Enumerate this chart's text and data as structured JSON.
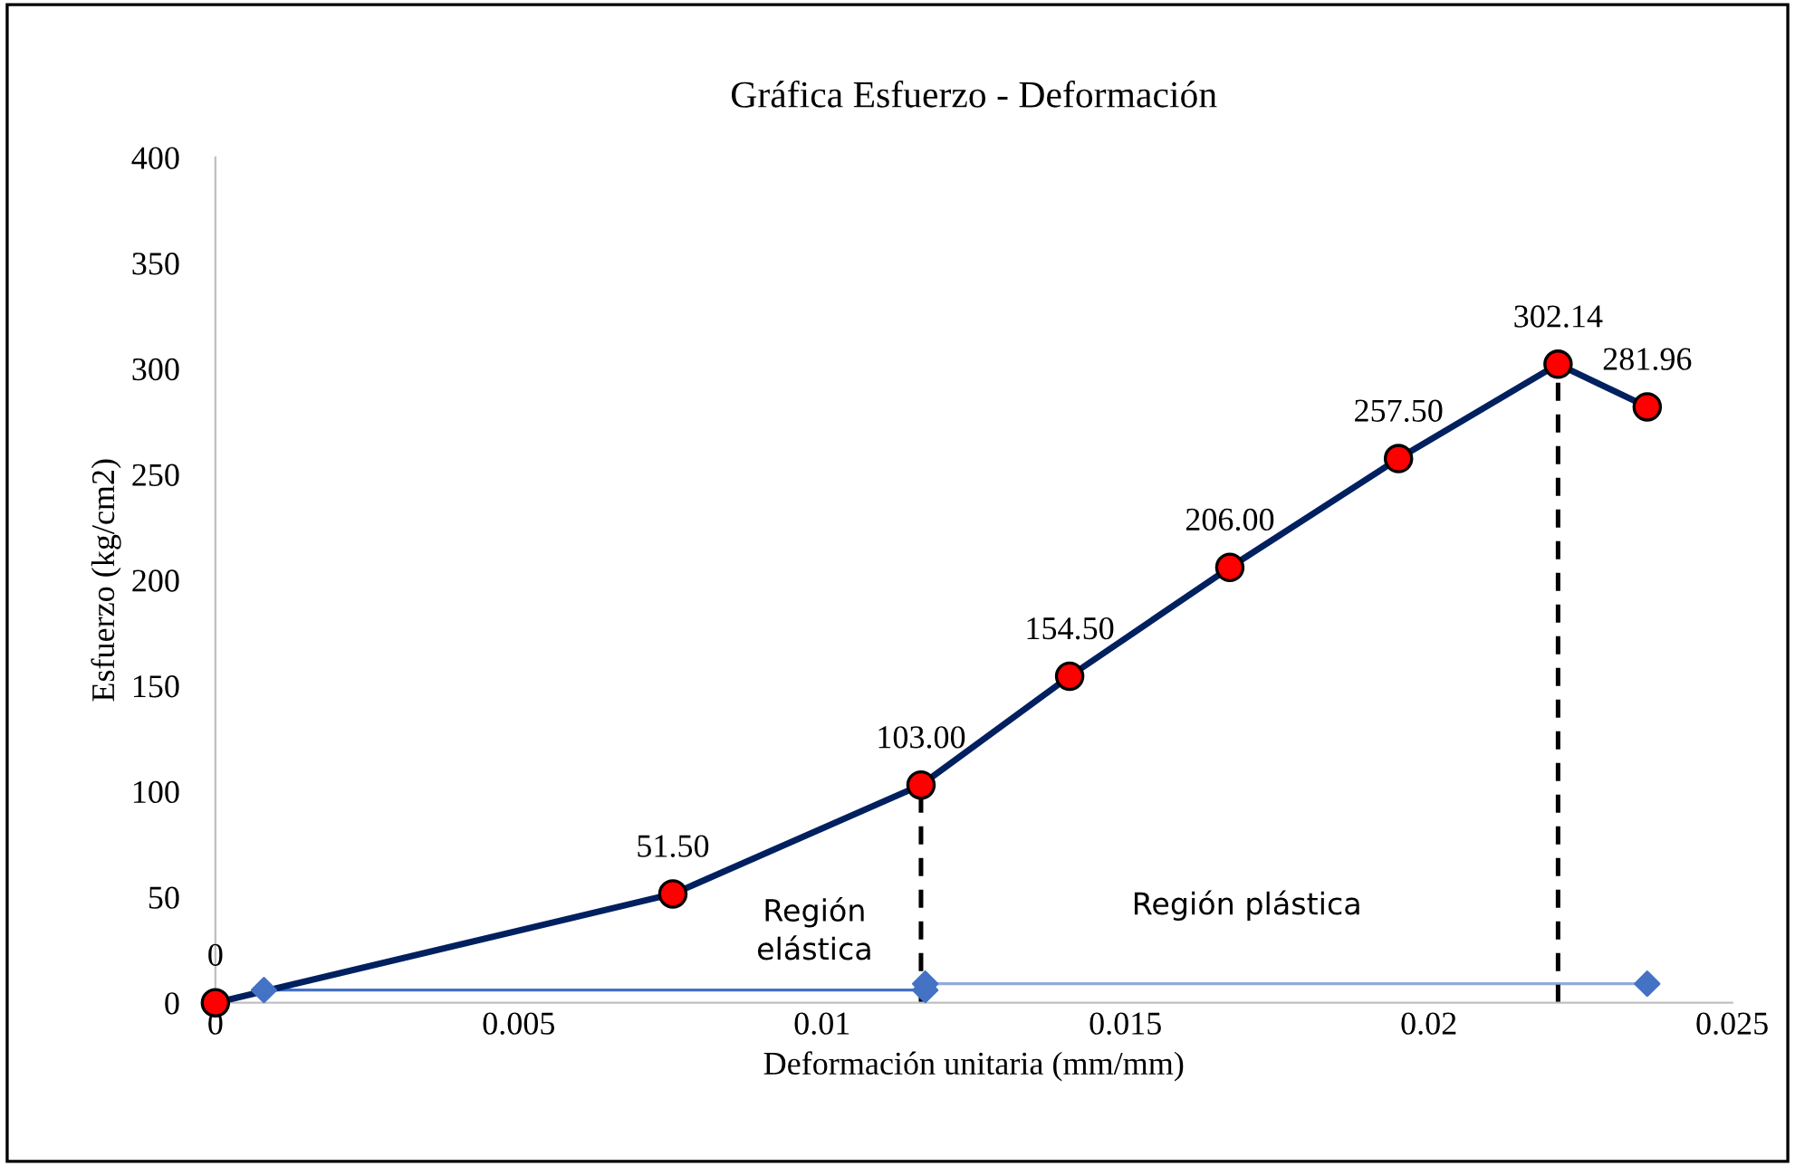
{
  "chart_data": {
    "type": "line",
    "title": "Gráfica Esfuerzo - Deformación",
    "xlabel": "Deformación unitaria (mm/mm)",
    "ylabel": "Esfuerzo (kg/cm2)",
    "xlim": [
      0,
      0.025
    ],
    "xticks": [
      0,
      0.005,
      0.01,
      0.015,
      0.02,
      0.025
    ],
    "ylim": [
      0,
      400
    ],
    "yticks": [
      0,
      50,
      100,
      150,
      200,
      250,
      300,
      350,
      400
    ],
    "grid": false,
    "legend": false,
    "series": [
      {
        "color": "#4472c4",
        "x": [
          0.0008,
          0.0117
        ],
        "values": [
          6,
          6
        ],
        "marker": "diamond",
        "line_style": "solid"
      },
      {
        "color": "#8faadc",
        "x": [
          0.0117,
          0.0236
        ],
        "values": [
          9,
          9
        ],
        "marker": "diamond",
        "line_style": "solid"
      },
      {
        "color": "#000000",
        "x": [
          0.01163,
          0.01163
        ],
        "values": [
          0,
          103
        ],
        "line_style": "dashed"
      },
      {
        "color": "#000000",
        "x": [
          0.02213,
          0.02213
        ],
        "values": [
          0,
          302
        ],
        "line_style": "dashed"
      },
      {
        "color": "#002060",
        "x": [
          0,
          0.00754,
          0.01163,
          0.01408,
          0.01672,
          0.0195,
          0.02213,
          0.0236
        ],
        "values": [
          0,
          51.5,
          103,
          154.5,
          206,
          257.5,
          302.14,
          281.96
        ],
        "marker": "circle",
        "line_style": "solid",
        "value_labels": [
          "0",
          "51.50",
          "103.00",
          "154.50",
          "206.00",
          "257.50",
          "302.14",
          "281.96"
        ]
      }
    ],
    "annotations": [
      "Región\nelástica",
      "Región plástica"
    ]
  }
}
